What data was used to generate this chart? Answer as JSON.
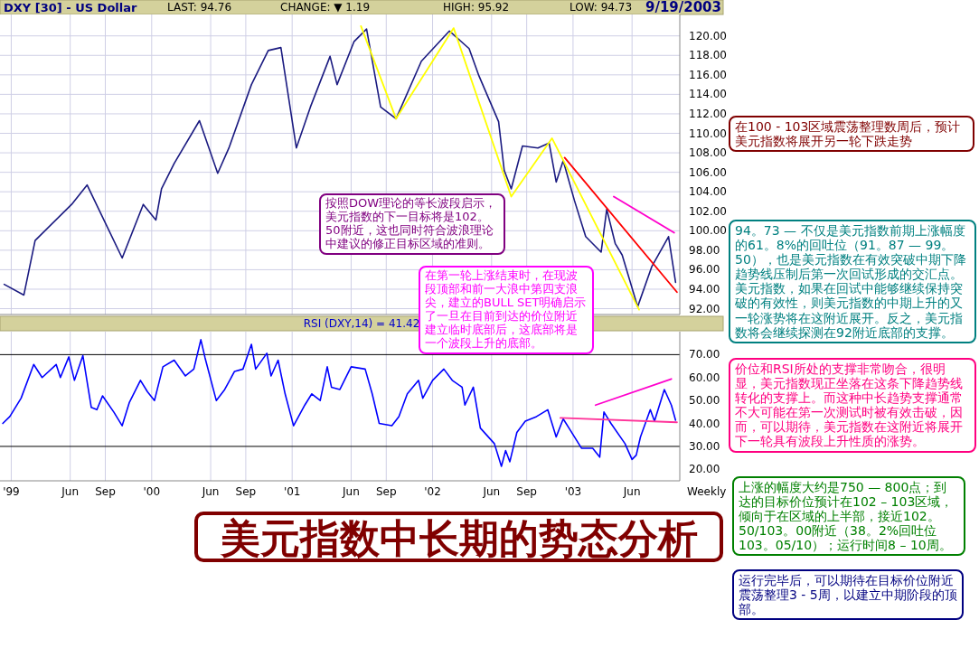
{
  "chart_data": [
    {
      "type": "line",
      "title": "DXY [30] - US Dollar",
      "annotations": [
        "LAST: 94.76",
        "CHANGE: ▼ 1.19",
        "HIGH: 95.92",
        "LOW: 94.73",
        "9/19/2003",
        "按照DOW理论的等长波段启示，美元指数的下一目标将是102。50附近，这也同时符合波浪理论中建议的修正目标区域的准则。",
        "在第一轮上涨结束时，在现波段顶部和前一大浪中第四支浪尖，建立的BULL SET明确启示了一旦在目前到达的价位附近建立临时底部后，这底部将是一个波段上升的底部。"
      ],
      "series": [
        {
          "color": "#1a1a80",
          "x": [
            1998.95,
            1999.09,
            1999.17,
            1999.43,
            1999.54,
            1999.79,
            1999.94,
            2000.03,
            2000.07,
            2000.16,
            2000.34,
            2000.47,
            2000.55,
            2000.71,
            2000.83,
            2000.92,
            2001.03,
            2001.13,
            2001.27,
            2001.32,
            2001.44,
            2001.53,
            2001.63,
            2001.74,
            2001.92,
            2002.12,
            2002.26,
            2002.33,
            2002.47,
            2002.51,
            2002.56,
            2002.64,
            2002.75,
            2002.83,
            2002.88,
            2002.93,
            2003.01,
            2003.09,
            2003.2,
            2003.24,
            2003.3,
            2003.35,
            2003.46,
            2003.56,
            2003.68,
            2003.73
          ],
          "values": [
            94.5,
            93.4,
            99.0,
            102.7,
            104.7,
            97.2,
            102.7,
            101.1,
            104.3,
            106.9,
            111.3,
            105.9,
            108.5,
            115.0,
            118.5,
            118.8,
            108.5,
            112.7,
            117.9,
            115.0,
            119.4,
            120.7,
            112.7,
            111.5,
            117.4,
            120.5,
            118.7,
            115.9,
            111.2,
            106.2,
            104.3,
            108.7,
            108.5,
            109.0,
            105.0,
            107.2,
            103.1,
            99.4,
            97.8,
            102.2,
            98.7,
            97.5,
            92.2,
            96.3,
            99.4,
            94.7
          ]
        },
        {
          "color": "#ffff00",
          "x": [
            2001.49,
            2001.74,
            2002.15,
            2002.56,
            2002.85,
            2003.47
          ],
          "values": [
            121.0,
            111.5,
            120.8,
            103.5,
            109.5,
            91.9
          ]
        },
        {
          "color": "#ff0000",
          "x": [
            2002.94,
            2003.74
          ],
          "values": [
            107.5,
            93.7
          ]
        },
        {
          "color": "#ff00cc",
          "x": [
            2003.29,
            2003.72
          ],
          "values": [
            103.5,
            99.8
          ]
        }
      ],
      "xlim": [
        1998.92,
        2003.76
      ],
      "ylim": [
        91.4,
        122.2
      ],
      "xticks": [
        {
          "value": 1999,
          "label": null
        },
        {
          "value": 1999.42,
          "label": null
        },
        {
          "value": 1999.67,
          "label": null
        },
        {
          "value": 2000,
          "label": null
        },
        {
          "value": 2000.42,
          "label": null
        },
        {
          "value": 2000.67,
          "label": null
        },
        {
          "value": 2001,
          "label": null
        },
        {
          "value": 2001.42,
          "label": null
        },
        {
          "value": 2001.67,
          "label": null
        },
        {
          "value": 2002,
          "label": null
        },
        {
          "value": 2002.42,
          "label": null
        },
        {
          "value": 2002.67,
          "label": null
        },
        {
          "value": 2003,
          "label": null
        },
        {
          "value": 2003.42,
          "label": null
        }
      ],
      "yticks": [
        {
          "value": 92,
          "label": "92.00"
        },
        {
          "value": 94,
          "label": "94.00"
        },
        {
          "value": 96,
          "label": "96.00"
        },
        {
          "value": 98,
          "label": "98.00"
        },
        {
          "value": 100,
          "label": "100.00"
        },
        {
          "value": 102,
          "label": "102.00"
        },
        {
          "value": 104,
          "label": "104.00"
        },
        {
          "value": 106,
          "label": "106.00"
        },
        {
          "value": 108,
          "label": "108.00"
        },
        {
          "value": 110,
          "label": "110.00"
        },
        {
          "value": 112,
          "label": "112.00"
        },
        {
          "value": 114,
          "label": "114.00"
        },
        {
          "value": 116,
          "label": "116.00"
        },
        {
          "value": 118,
          "label": "118.00"
        },
        {
          "value": 120,
          "label": "120.00"
        }
      ],
      "grid": true,
      "tick_labels": "y"
    },
    {
      "type": "line",
      "title": "RSI (DXY,14) = 41.42",
      "annotations": [
        "Weekly"
      ],
      "series": [
        {
          "color": "#0000ff",
          "x": [
            1998.94,
            1998.99,
            1999.07,
            1999.16,
            1999.22,
            1999.32,
            1999.35,
            1999.41,
            1999.45,
            1999.51,
            1999.57,
            1999.61,
            1999.65,
            1999.73,
            1999.79,
            1999.84,
            1999.92,
            1999.97,
            2000.02,
            2000.08,
            2000.16,
            2000.24,
            2000.3,
            2000.35,
            2000.38,
            2000.46,
            2000.52,
            2000.59,
            2000.65,
            2000.71,
            2000.74,
            2000.82,
            2000.85,
            2000.9,
            2000.95,
            2001.01,
            2001.09,
            2001.14,
            2001.2,
            2001.25,
            2001.28,
            2001.34,
            2001.42,
            2001.52,
            2001.57,
            2001.62,
            2001.71,
            2001.76,
            2001.82,
            2001.9,
            2001.93,
            2002.0,
            2002.08,
            2002.14,
            2002.21,
            2002.23,
            2002.29,
            2002.34,
            2002.44,
            2002.49,
            2002.52,
            2002.55,
            2002.6,
            2002.66,
            2002.74,
            2002.82,
            2002.88,
            2002.93,
            2002.98,
            2003.06,
            2003.14,
            2003.19,
            2003.22,
            2003.27,
            2003.37,
            2003.42,
            2003.45,
            2003.48,
            2003.55,
            2003.58,
            2003.65,
            2003.7,
            2003.73
          ],
          "values": [
            40,
            43,
            51,
            65.7,
            60,
            65.7,
            60,
            69,
            58.8,
            69.6,
            47,
            46,
            52,
            45,
            39,
            49,
            58.8,
            53.8,
            50,
            64.7,
            67.6,
            60.7,
            63.7,
            76.5,
            68.6,
            50,
            54.8,
            62.7,
            63.7,
            74.5,
            63.7,
            70.6,
            60.7,
            67.6,
            52.9,
            39,
            48,
            52.9,
            50,
            64.7,
            55.8,
            54.8,
            64.7,
            63.7,
            52.9,
            40,
            39,
            43,
            52.9,
            58.8,
            51,
            58.8,
            63.7,
            58.8,
            55.8,
            48,
            55.8,
            38,
            31.2,
            21.3,
            28.2,
            23.3,
            36.1,
            41,
            43,
            46,
            34.1,
            42,
            37.1,
            29.2,
            29.2,
            25.3,
            45,
            40,
            31.2,
            24.3,
            26.2,
            34.1,
            46,
            41,
            54.8,
            48,
            41.4
          ]
        },
        {
          "color": "#ff00cc",
          "x": [
            2003.16,
            2003.7
          ],
          "values": [
            48,
            59.4
          ]
        },
        {
          "color": "#ff3399",
          "x": [
            2002.91,
            2003.74
          ],
          "values": [
            42.4,
            40.5
          ]
        }
      ],
      "xlim": [
        1998.92,
        2003.76
      ],
      "ylim": [
        15,
        80
      ],
      "xticks": [
        {
          "value": 1999,
          "label": "'99"
        },
        {
          "value": 1999.42,
          "label": "Jun"
        },
        {
          "value": 1999.67,
          "label": "Sep"
        },
        {
          "value": 2000,
          "label": "'00"
        },
        {
          "value": 2000.42,
          "label": "Jun"
        },
        {
          "value": 2000.67,
          "label": "Sep"
        },
        {
          "value": 2001,
          "label": "'01"
        },
        {
          "value": 2001.42,
          "label": "Jun"
        },
        {
          "value": 2001.67,
          "label": "Sep"
        },
        {
          "value": 2002,
          "label": "'02"
        },
        {
          "value": 2002.42,
          "label": "Jun"
        },
        {
          "value": 2002.67,
          "label": "Sep"
        },
        {
          "value": 2003,
          "label": "'03"
        },
        {
          "value": 2003.42,
          "label": "Jun"
        }
      ],
      "yticks": [
        {
          "value": 20,
          "label": "20.00"
        },
        {
          "value": 30,
          "label": "30.00"
        },
        {
          "value": 40,
          "label": "40.00"
        },
        {
          "value": 50,
          "label": "50.00"
        },
        {
          "value": 60,
          "label": "60.00"
        },
        {
          "value": 70,
          "label": "70.00"
        }
      ],
      "grid": "x",
      "ref_lines": [
        {
          "axis": "y",
          "value": 70,
          "color": "#000000"
        },
        {
          "axis": "y",
          "value": 30,
          "color": "#000000"
        }
      ]
    },
    {
      "type": "other",
      "title": "美元指数中长期的势态分析",
      "annotations": [
        "在100 - 103区域震荡整理数周后，预计美元指数将展开另一轮下跌走势",
        "94。73 — 不仅是美元指数前期上涨幅度的61。8%的回吐位（91。87 — 99。50），也是美元指数在有效突破中期下降趋势线压制后第一次回试形成的交汇点。美元指数，如果在回试中能够继续保持突破的有效性，则美元指数的中期上升的又一轮涨势将在这附近展开。反之，美元指数将会继续探测在92附近底部的支撑。",
        "价位和RSI所处的支撑非常吻合，很明显，美元指数现正坐落在这条下降趋势线转化的支撑上。而这种中长趋势支撑通常不大可能在第一次测试时被有效击破，因而，可以期待，美元指数在这附近将展开下一轮具有波段上升性质的涨势。",
        "上涨的幅度大约是750 — 800点；到达的目标价位预计在102 – 103区域，倾向于在区域的上半部，接近102。50/103。00附近（38。2%回吐位103。05/10）；运行时间8 – 10周。",
        "运行完毕后，可以期待在目标价位附近震荡整理3 - 5周，以建立中期阶段的顶部。"
      ]
    }
  ]
}
